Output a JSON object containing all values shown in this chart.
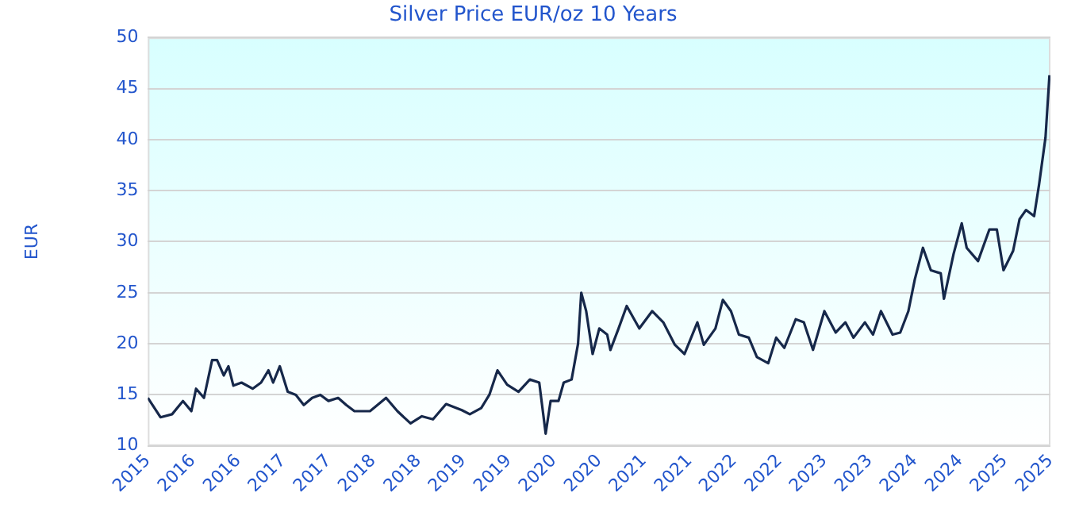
{
  "chart_data": {
    "type": "line",
    "title": "Silver Price EUR/oz 10 Years",
    "ylabel": "EUR",
    "x": [
      "2015-11-01",
      "2015-12-22",
      "2016-02-07",
      "2016-03-22",
      "2016-04-25",
      "2016-05-14",
      "2016-06-15",
      "2016-07-18",
      "2016-08-07",
      "2016-09-03",
      "2016-09-22",
      "2016-10-12",
      "2016-11-14",
      "2016-12-29",
      "2017-02-01",
      "2017-03-03",
      "2017-03-22",
      "2017-04-18",
      "2017-05-20",
      "2017-06-22",
      "2017-07-24",
      "2017-08-27",
      "2017-09-29",
      "2017-11-01",
      "2017-12-10",
      "2018-01-12",
      "2018-02-14",
      "2018-04-18",
      "2018-06-22",
      "2018-08-07",
      "2018-09-29",
      "2018-11-14",
      "2018-12-29",
      "2019-02-20",
      "2019-04-25",
      "2019-05-27",
      "2019-07-12",
      "2019-08-14",
      "2019-09-16",
      "2019-10-25",
      "2019-12-10",
      "2020-01-25",
      "2020-03-03",
      "2020-03-29",
      "2020-04-18",
      "2020-05-20",
      "2020-06-10",
      "2020-07-12",
      "2020-08-07",
      "2020-08-20",
      "2020-09-09",
      "2020-10-05",
      "2020-11-01",
      "2020-12-03",
      "2020-12-16",
      "2021-01-18",
      "2021-02-20",
      "2021-04-12",
      "2021-06-03",
      "2021-07-18",
      "2021-09-03",
      "2021-10-12",
      "2021-12-03",
      "2021-12-29",
      "2022-02-14",
      "2022-03-16",
      "2022-04-18",
      "2022-05-20",
      "2022-06-29",
      "2022-08-01",
      "2022-09-16",
      "2022-10-18",
      "2022-11-20",
      "2023-01-05",
      "2023-02-07",
      "2023-03-16",
      "2023-05-01",
      "2023-06-16",
      "2023-07-25",
      "2023-08-27",
      "2023-10-12",
      "2023-11-14",
      "2023-12-16",
      "2024-02-01",
      "2024-03-03",
      "2024-04-05",
      "2024-05-01",
      "2024-06-03",
      "2024-07-05",
      "2024-08-14",
      "2024-08-27",
      "2024-10-05",
      "2024-11-07",
      "2024-11-27",
      "2025-01-12",
      "2025-02-27",
      "2025-03-29",
      "2025-04-25",
      "2025-06-03",
      "2025-06-29",
      "2025-07-25",
      "2025-08-27",
      "2025-09-16",
      "2025-10-12",
      "2025-10-28"
    ],
    "series": [
      {
        "color": "#16284a",
        "values": [
          14.7,
          12.8,
          13.1,
          14.4,
          13.4,
          15.6,
          14.7,
          18.4,
          18.4,
          16.9,
          17.8,
          15.9,
          16.2,
          15.6,
          16.2,
          17.4,
          16.2,
          17.8,
          15.3,
          15.0,
          14.0,
          14.7,
          15.0,
          14.4,
          14.7,
          14.0,
          13.4,
          13.4,
          14.7,
          13.4,
          12.2,
          12.9,
          12.6,
          14.1,
          13.5,
          13.1,
          13.7,
          15.0,
          17.4,
          16.0,
          15.3,
          16.5,
          16.2,
          11.2,
          14.4,
          14.4,
          16.2,
          16.5,
          20.0,
          25.0,
          23.2,
          19.0,
          21.5,
          20.9,
          19.4,
          21.5,
          23.7,
          21.5,
          23.2,
          22.1,
          19.9,
          19.0,
          22.1,
          19.9,
          21.5,
          24.3,
          23.2,
          20.9,
          20.6,
          18.7,
          18.1,
          20.6,
          19.6,
          22.4,
          22.1,
          19.4,
          23.2,
          21.1,
          22.1,
          20.6,
          22.1,
          20.9,
          23.2,
          20.9,
          21.1,
          23.2,
          26.3,
          29.4,
          27.2,
          26.9,
          24.4,
          28.8,
          31.8,
          29.4,
          28.1,
          31.2,
          31.2,
          27.2,
          29.1,
          32.2,
          33.1,
          32.5,
          35.6,
          40.2,
          46.3
        ]
      }
    ],
    "xlim": [
      "2015-11-01",
      "2025-11-01"
    ],
    "xticks": [
      {
        "value": "2015-11-01",
        "label": "2015"
      },
      {
        "value": "2016-05-01",
        "label": "2016"
      },
      {
        "value": "2016-11-01",
        "label": "2016"
      },
      {
        "value": "2017-05-01",
        "label": "2017"
      },
      {
        "value": "2017-11-01",
        "label": "2017"
      },
      {
        "value": "2018-05-01",
        "label": "2018"
      },
      {
        "value": "2018-11-01",
        "label": "2018"
      },
      {
        "value": "2019-05-01",
        "label": "2019"
      },
      {
        "value": "2019-11-01",
        "label": "2019"
      },
      {
        "value": "2020-05-01",
        "label": "2020"
      },
      {
        "value": "2020-11-01",
        "label": "2020"
      },
      {
        "value": "2021-05-01",
        "label": "2021"
      },
      {
        "value": "2021-11-01",
        "label": "2021"
      },
      {
        "value": "2022-05-01",
        "label": "2022"
      },
      {
        "value": "2022-11-01",
        "label": "2022"
      },
      {
        "value": "2023-05-01",
        "label": "2023"
      },
      {
        "value": "2023-11-01",
        "label": "2023"
      },
      {
        "value": "2024-05-01",
        "label": "2024"
      },
      {
        "value": "2024-11-01",
        "label": "2024"
      },
      {
        "value": "2025-05-01",
        "label": "2025"
      },
      {
        "value": "2025-11-01",
        "label": "2025"
      }
    ],
    "ylim": [
      10,
      50
    ],
    "yticks": [
      10,
      15,
      20,
      25,
      30,
      35,
      40,
      45,
      50
    ],
    "grid": "y",
    "legend": false
  }
}
